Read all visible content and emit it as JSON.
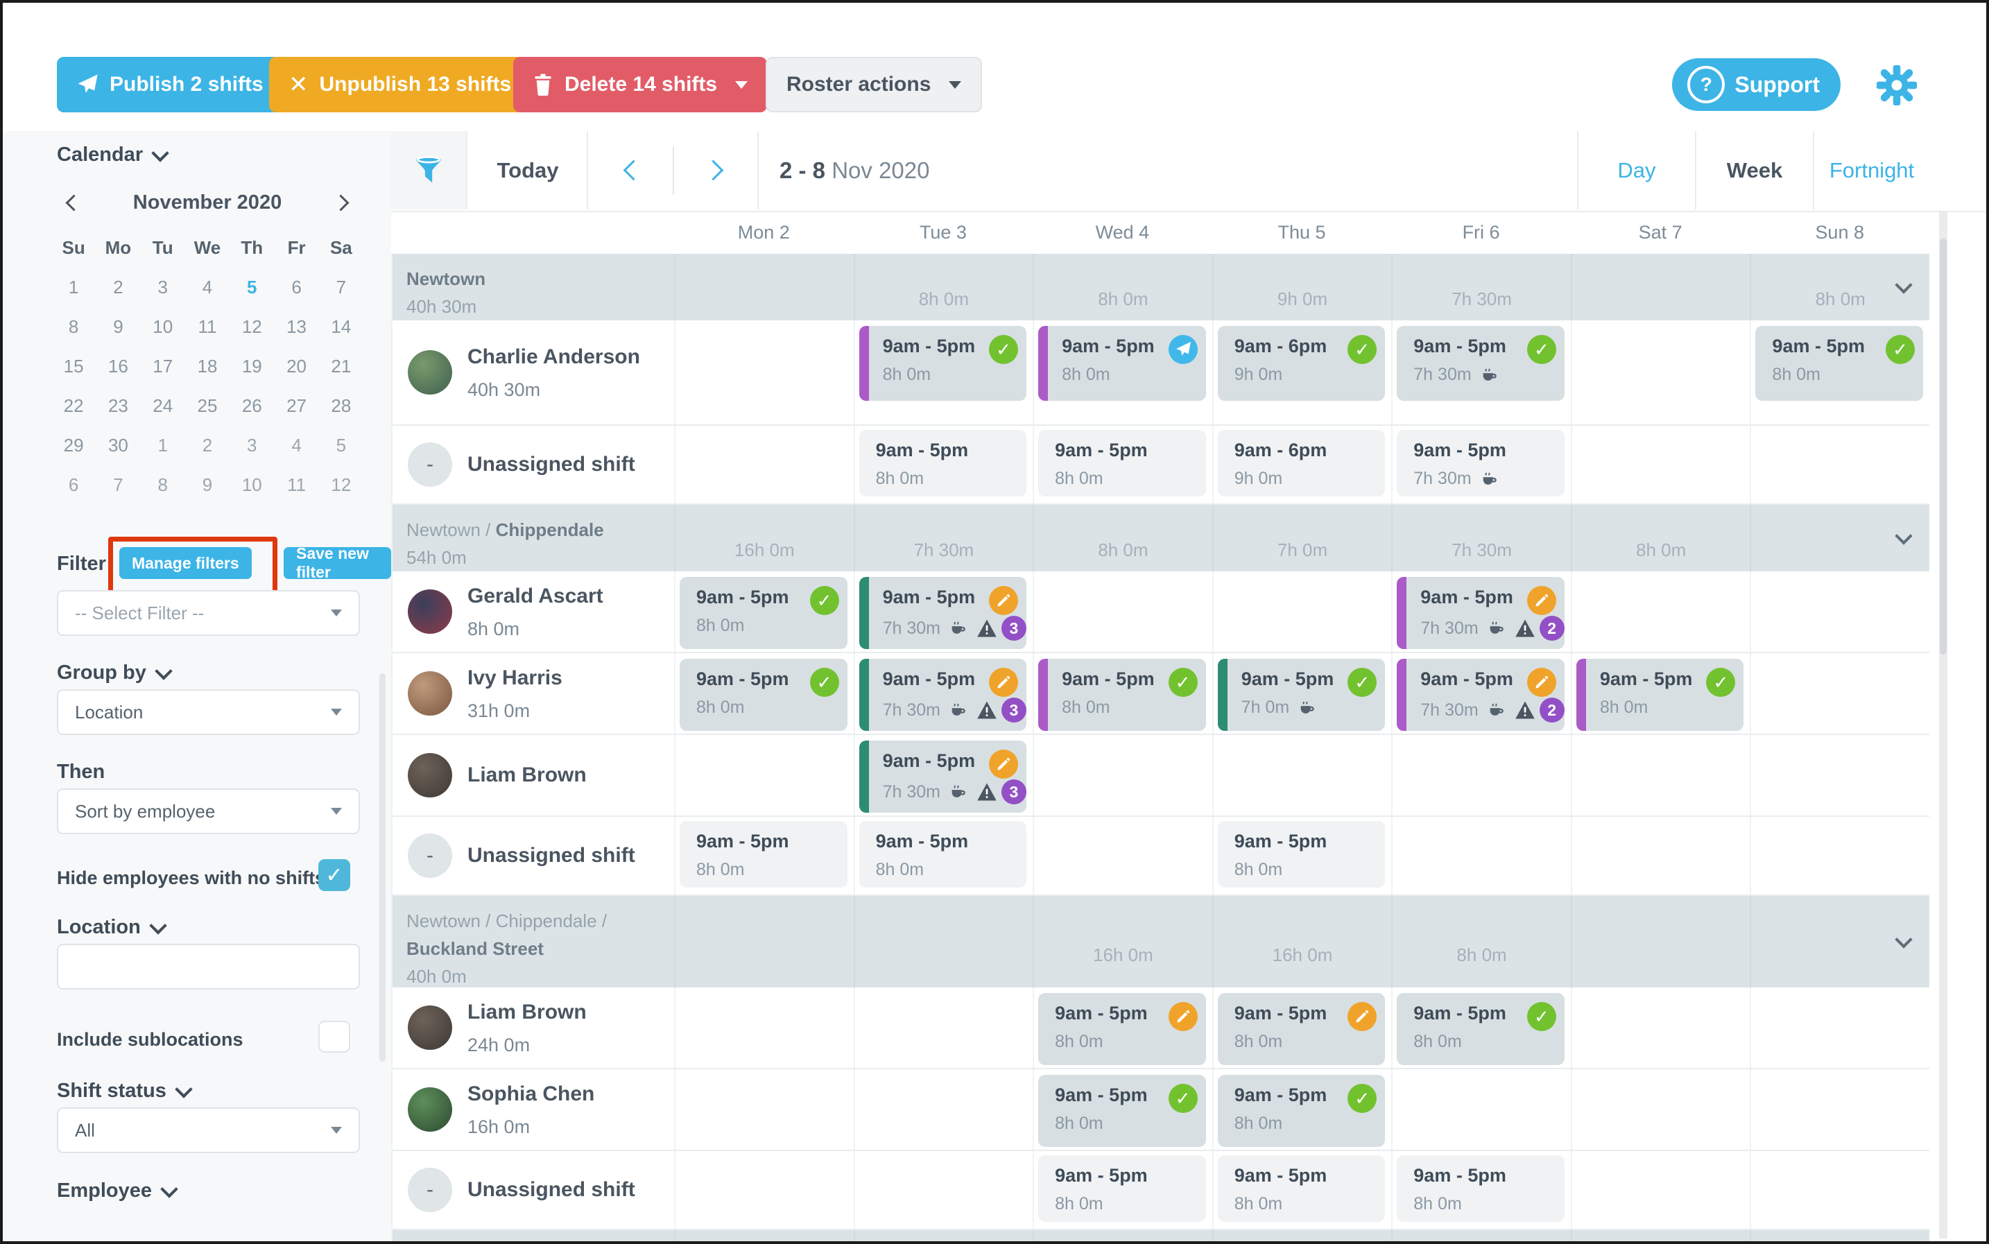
{
  "toolbar": {
    "publish_label": "Publish 2 shifts",
    "unpublish_label": "Unpublish 13 shifts",
    "delete_label": "Delete 14 shifts",
    "roster_actions_label": "Roster actions",
    "support_label": "Support"
  },
  "colors": {
    "brand_blue": "#3cb4e6",
    "orange": "#efa923",
    "red": "#e25c68",
    "green_check": "#72c230",
    "published_blue": "#41b8ea",
    "edited_orange": "#f0a32a",
    "purple_border": "#ab5bc8",
    "teal_border": "#2c8d72",
    "warn_badge_purple": "#9350c6",
    "annotation_red": "#df380c",
    "group_header_bg": "#dce3e6",
    "card_bg": "#d8dfe2",
    "open_card_bg": "#f0f2f4"
  },
  "sidebar": {
    "calendar_label": "Calendar",
    "mini_calendar": {
      "month_title": "November 2020",
      "day_names": [
        "Su",
        "Mo",
        "Tu",
        "We",
        "Th",
        "Fr",
        "Sa"
      ],
      "weeks": [
        [
          {
            "d": 1
          },
          {
            "d": 2
          },
          {
            "d": 3
          },
          {
            "d": 4
          },
          {
            "d": 5,
            "sel": true
          },
          {
            "d": 6
          },
          {
            "d": 7
          }
        ],
        [
          {
            "d": 8
          },
          {
            "d": 9
          },
          {
            "d": 10
          },
          {
            "d": 11
          },
          {
            "d": 12
          },
          {
            "d": 13
          },
          {
            "d": 14
          }
        ],
        [
          {
            "d": 15
          },
          {
            "d": 16
          },
          {
            "d": 17
          },
          {
            "d": 18
          },
          {
            "d": 19
          },
          {
            "d": 20
          },
          {
            "d": 21
          }
        ],
        [
          {
            "d": 22
          },
          {
            "d": 23
          },
          {
            "d": 24
          },
          {
            "d": 25
          },
          {
            "d": 26
          },
          {
            "d": 27
          },
          {
            "d": 28
          }
        ],
        [
          {
            "d": 29
          },
          {
            "d": 30
          },
          {
            "d": 1,
            "other": true
          },
          {
            "d": 2,
            "other": true
          },
          {
            "d": 3,
            "other": true
          },
          {
            "d": 4,
            "other": true
          },
          {
            "d": 5,
            "other": true
          }
        ],
        [
          {
            "d": 6,
            "other": true
          },
          {
            "d": 7,
            "other": true
          },
          {
            "d": 8,
            "other": true
          },
          {
            "d": 9,
            "other": true
          },
          {
            "d": 10,
            "other": true
          },
          {
            "d": 11,
            "other": true
          },
          {
            "d": 12,
            "other": true
          }
        ]
      ]
    },
    "filter": {
      "label": "Filter",
      "manage_button": "Manage filters",
      "save_button": "Save new filter",
      "select_placeholder": "-- Select Filter --"
    },
    "group_by": {
      "label": "Group by",
      "value": "Location"
    },
    "then": {
      "label": "Then",
      "value": "Sort by employee"
    },
    "hide_no_shifts": {
      "label": "Hide employees with no shifts",
      "checked": true
    },
    "location_filter": {
      "label": "Location",
      "value": ""
    },
    "include_sublocations": {
      "label": "Include sublocations",
      "checked": false
    },
    "shift_status": {
      "label": "Shift status",
      "value": "All"
    },
    "employee": {
      "label": "Employee"
    }
  },
  "calendar_header": {
    "today_label": "Today",
    "range_bold": "2 - 8",
    "range_rest": "Nov 2020",
    "views": [
      "Day",
      "Week",
      "Fortnight"
    ],
    "active_view": "Week",
    "day_columns": [
      "Mon 2",
      "Tue 3",
      "Wed 4",
      "Thu 5",
      "Fri 6",
      "Sat 7",
      "Sun 8"
    ]
  },
  "roster": {
    "groups": [
      {
        "location_prefix": "",
        "location_bold": "Newtown",
        "total": "40h 30m",
        "day_totals": [
          "",
          "8h 0m",
          "8h 0m",
          "9h 0m",
          "7h 30m",
          "",
          "8h 0m"
        ],
        "two_line": false,
        "rows": [
          {
            "type": "employee",
            "name": "Charlie Anderson",
            "hours": "40h 30m",
            "avatar": "#7a9b6d",
            "avatar2": "#41634f",
            "shifts": [
              {
                "day": 1,
                "time": "9am - 5pm",
                "dur": "8h 0m",
                "border": "purple",
                "status": "check"
              },
              {
                "day": 2,
                "time": "9am - 5pm",
                "dur": "8h 0m",
                "border": "purple",
                "status": "published"
              },
              {
                "day": 3,
                "time": "9am - 6pm",
                "dur": "9h 0m",
                "status": "check"
              },
              {
                "day": 4,
                "time": "9am - 5pm",
                "dur": "7h 30m",
                "coffee": true,
                "status": "check"
              },
              {
                "day": 6,
                "time": "9am - 5pm",
                "dur": "8h 0m",
                "status": "check"
              }
            ]
          },
          {
            "type": "unassigned",
            "name": "Unassigned shift",
            "shifts": [
              {
                "day": 1,
                "time": "9am - 5pm",
                "dur": "8h 0m"
              },
              {
                "day": 2,
                "time": "9am - 5pm",
                "dur": "8h 0m"
              },
              {
                "day": 3,
                "time": "9am - 6pm",
                "dur": "9h 0m"
              },
              {
                "day": 4,
                "time": "9am - 5pm",
                "dur": "7h 30m",
                "coffee": true
              }
            ]
          }
        ]
      },
      {
        "location_prefix": "Newtown / ",
        "location_bold": "Chippendale",
        "total": "54h 0m",
        "day_totals": [
          "16h 0m",
          "7h 30m",
          "8h 0m",
          "7h 0m",
          "7h 30m",
          "8h 0m",
          ""
        ],
        "two_line": false,
        "rows": [
          {
            "type": "employee",
            "name": "Gerald Ascart",
            "hours": "8h 0m",
            "avatar": "#3a3f5c",
            "avatar2": "#8a3b4a",
            "shifts": [
              {
                "day": 0,
                "time": "9am - 5pm",
                "dur": "8h 0m",
                "status": "check"
              },
              {
                "day": 1,
                "time": "9am - 5pm",
                "dur": "7h 30m",
                "border": "teal",
                "status": "edited",
                "coffee": true,
                "warn": 3
              },
              {
                "day": 4,
                "time": "9am - 5pm",
                "dur": "7h 30m",
                "border": "purple",
                "status": "edited",
                "coffee": true,
                "warn": 2
              }
            ]
          },
          {
            "type": "employee",
            "name": "Ivy Harris",
            "hours": "31h 0m",
            "avatar": "#c09a7c",
            "avatar2": "#7d5a43",
            "shifts": [
              {
                "day": 0,
                "time": "9am - 5pm",
                "dur": "8h 0m",
                "status": "check"
              },
              {
                "day": 1,
                "time": "9am - 5pm",
                "dur": "7h 30m",
                "border": "teal",
                "status": "edited",
                "coffee": true,
                "warn": 3
              },
              {
                "day": 2,
                "time": "9am - 5pm",
                "dur": "8h 0m",
                "border": "purple",
                "status": "check"
              },
              {
                "day": 3,
                "time": "9am - 5pm",
                "dur": "7h 0m",
                "border": "teal",
                "status": "check",
                "coffee": true
              },
              {
                "day": 4,
                "time": "9am - 5pm",
                "dur": "7h 30m",
                "border": "purple",
                "status": "edited",
                "coffee": true,
                "warn": 2
              },
              {
                "day": 5,
                "time": "9am - 5pm",
                "dur": "8h 0m",
                "border": "purple",
                "status": "check"
              }
            ]
          },
          {
            "type": "employee",
            "name": "Liam Brown",
            "hours": "",
            "avatar": "#6e6259",
            "avatar2": "#3f3a36",
            "shifts": [
              {
                "day": 1,
                "time": "9am - 5pm",
                "dur": "7h 30m",
                "border": "teal",
                "status": "edited",
                "coffee": true,
                "warn": 3
              }
            ]
          },
          {
            "type": "unassigned",
            "name": "Unassigned shift",
            "shifts": [
              {
                "day": 0,
                "time": "9am - 5pm",
                "dur": "8h 0m"
              },
              {
                "day": 1,
                "time": "9am - 5pm",
                "dur": "8h 0m"
              },
              {
                "day": 3,
                "time": "9am - 5pm",
                "dur": "8h 0m"
              }
            ]
          }
        ]
      },
      {
        "location_prefix": "Newtown / Chippendale / ",
        "location_bold": "Buckland Street",
        "total": "40h 0m",
        "day_totals": [
          "",
          "",
          "16h 0m",
          "16h 0m",
          "8h 0m",
          "",
          ""
        ],
        "two_line": true,
        "rows": [
          {
            "type": "employee",
            "name": "Liam Brown",
            "hours": "24h 0m",
            "avatar": "#6e6259",
            "avatar2": "#3f3a36",
            "shifts": [
              {
                "day": 2,
                "time": "9am - 5pm",
                "dur": "8h 0m",
                "status": "edited"
              },
              {
                "day": 3,
                "time": "9am - 5pm",
                "dur": "8h 0m",
                "status": "edited"
              },
              {
                "day": 4,
                "time": "9am - 5pm",
                "dur": "8h 0m",
                "status": "check"
              }
            ]
          },
          {
            "type": "employee",
            "name": "Sophia Chen",
            "hours": "16h 0m",
            "avatar": "#5e8f5a",
            "avatar2": "#2f4d33",
            "shifts": [
              {
                "day": 2,
                "time": "9am - 5pm",
                "dur": "8h 0m",
                "status": "check"
              },
              {
                "day": 3,
                "time": "9am - 5pm",
                "dur": "8h 0m",
                "status": "check"
              }
            ]
          },
          {
            "type": "unassigned",
            "name": "Unassigned shift",
            "shifts": [
              {
                "day": 2,
                "time": "9am - 5pm",
                "dur": "8h 0m"
              },
              {
                "day": 3,
                "time": "9am - 5pm",
                "dur": "8h 0m"
              },
              {
                "day": 4,
                "time": "9am - 5pm",
                "dur": "8h 0m"
              }
            ]
          }
        ]
      }
    ]
  }
}
